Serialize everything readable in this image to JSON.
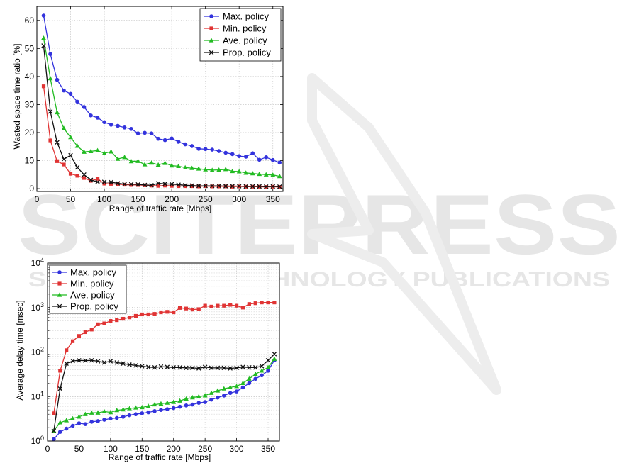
{
  "watermark": {
    "brand": "SCITEPRESS",
    "tagline": "SCIENCE AND TECHNOLOGY PUBLICATIONS"
  },
  "colors": {
    "max": "#3333dd",
    "min": "#e03434",
    "ave": "#22bb22",
    "prop": "#111111",
    "watermark": "#e6e6e6"
  },
  "chart_data": [
    {
      "id": "wasted",
      "type": "line",
      "title": "",
      "xlabel": "Range of traffic rate [Mbps]",
      "ylabel": "Wasted space time ratio [%]",
      "xlim": [
        0,
        365
      ],
      "ylim": [
        -1,
        65
      ],
      "xticks": [
        0,
        50,
        100,
        150,
        200,
        250,
        300,
        350
      ],
      "yticks": [
        0,
        10,
        20,
        30,
        40,
        50,
        60
      ],
      "grid": true,
      "legend": "top-right",
      "x": [
        10,
        20,
        30,
        40,
        50,
        60,
        70,
        80,
        90,
        100,
        110,
        120,
        130,
        140,
        150,
        160,
        170,
        180,
        190,
        200,
        210,
        220,
        230,
        240,
        250,
        260,
        270,
        280,
        290,
        300,
        310,
        320,
        330,
        340,
        350,
        360
      ],
      "series": [
        {
          "name": "Max. policy",
          "color_key": "max",
          "marker": "circle",
          "values": [
            61.7,
            48.0,
            38.8,
            35.0,
            33.8,
            31.0,
            29.1,
            26.1,
            25.3,
            23.7,
            22.8,
            22.4,
            21.8,
            21.3,
            19.7,
            19.9,
            19.7,
            17.8,
            17.3,
            17.9,
            16.7,
            15.8,
            15.2,
            14.2,
            14.1,
            13.9,
            13.4,
            12.8,
            12.3,
            11.6,
            11.4,
            12.6,
            10.3,
            11.2,
            10.2,
            9.3
          ]
        },
        {
          "name": "Min. policy",
          "color_key": "min",
          "marker": "square",
          "values": [
            36.5,
            17.2,
            9.8,
            8.6,
            5.3,
            4.6,
            3.8,
            2.8,
            3.5,
            1.8,
            1.7,
            1.6,
            1.4,
            1.3,
            1.3,
            1.2,
            1.1,
            1.0,
            1.1,
            1.0,
            0.9,
            0.9,
            0.9,
            0.8,
            0.9,
            0.8,
            0.8,
            0.8,
            0.7,
            0.8,
            0.7,
            0.7,
            0.7,
            0.6,
            0.7,
            0.6
          ]
        },
        {
          "name": "Ave. policy",
          "color_key": "ave",
          "marker": "triangle",
          "values": [
            53.7,
            39.3,
            27.2,
            21.5,
            18.3,
            15.2,
            13.1,
            13.3,
            13.6,
            12.6,
            13.2,
            10.6,
            11.2,
            9.7,
            9.8,
            8.6,
            9.2,
            8.5,
            9.1,
            8.2,
            8.0,
            7.5,
            7.3,
            7.1,
            6.8,
            6.6,
            6.7,
            6.9,
            6.2,
            6.1,
            5.6,
            5.4,
            5.2,
            5.0,
            4.9,
            4.4
          ]
        },
        {
          "name": "Prop. policy",
          "color_key": "prop",
          "marker": "x",
          "values": [
            51.0,
            27.5,
            16.5,
            10.5,
            11.9,
            7.6,
            5.0,
            3.1,
            2.4,
            2.4,
            2.3,
            1.9,
            1.6,
            1.6,
            1.5,
            1.3,
            1.2,
            1.9,
            1.7,
            1.6,
            1.4,
            1.2,
            1.1,
            1.0,
            1.0,
            1.0,
            1.0,
            0.9,
            0.9,
            0.9,
            0.8,
            0.8,
            0.8,
            0.7,
            0.8,
            0.7
          ]
        }
      ]
    },
    {
      "id": "delay",
      "type": "line",
      "title": "",
      "xlabel": "Range of traffic rate [Mbps]",
      "ylabel": "Average delay time [msec]",
      "yscale": "log",
      "xlim": [
        0,
        368
      ],
      "ylim": [
        1,
        10000
      ],
      "xticks": [
        0,
        50,
        100,
        150,
        200,
        250,
        300,
        350
      ],
      "ytick_exponents": [
        0,
        1,
        2,
        3,
        4
      ],
      "ytick_base": "10",
      "grid": true,
      "legend": "top-left",
      "x": [
        10,
        20,
        30,
        40,
        50,
        60,
        70,
        80,
        90,
        100,
        110,
        120,
        130,
        140,
        150,
        160,
        170,
        180,
        190,
        200,
        210,
        220,
        230,
        240,
        250,
        260,
        270,
        280,
        290,
        300,
        310,
        320,
        330,
        340,
        350,
        360
      ],
      "series": [
        {
          "name": "Max. policy",
          "color_key": "max",
          "marker": "circle",
          "values": [
            1.1,
            1.6,
            1.9,
            2.2,
            2.5,
            2.4,
            2.7,
            2.8,
            3.0,
            3.2,
            3.3,
            3.5,
            3.8,
            4.0,
            4.2,
            4.4,
            4.7,
            5.0,
            5.2,
            5.5,
            5.9,
            6.3,
            6.6,
            7.2,
            7.5,
            8.5,
            9.5,
            10.5,
            12,
            13,
            16,
            20,
            25,
            30,
            38,
            65
          ]
        },
        {
          "name": "Min. policy",
          "color_key": "min",
          "marker": "square",
          "values": [
            4.2,
            38,
            110,
            175,
            230,
            280,
            320,
            420,
            440,
            500,
            520,
            560,
            600,
            650,
            700,
            700,
            720,
            780,
            800,
            780,
            980,
            950,
            900,
            920,
            1100,
            1050,
            1100,
            1100,
            1150,
            1100,
            1000,
            1200,
            1250,
            1300,
            1300,
            1300
          ]
        },
        {
          "name": "Ave. policy",
          "color_key": "ave",
          "marker": "triangle",
          "values": [
            1.7,
            2.6,
            2.9,
            3.2,
            3.5,
            4.0,
            4.3,
            4.3,
            4.6,
            4.4,
            4.9,
            5.1,
            5.4,
            5.6,
            5.7,
            6.1,
            6.6,
            6.9,
            7.2,
            7.5,
            8.0,
            8.9,
            9.5,
            10,
            10.5,
            12,
            13.5,
            15,
            16,
            17,
            20,
            25,
            32,
            38,
            45,
            70
          ]
        },
        {
          "name": "Prop. policy",
          "color_key": "prop",
          "marker": "x",
          "values": [
            1.7,
            15,
            55,
            63,
            65,
            64,
            65,
            62,
            58,
            62,
            58,
            55,
            52,
            50,
            48,
            46,
            45,
            47,
            46,
            45,
            45,
            44,
            44,
            43,
            46,
            44,
            44,
            44,
            43,
            44,
            46,
            45,
            45,
            48,
            65,
            90
          ]
        }
      ]
    }
  ]
}
